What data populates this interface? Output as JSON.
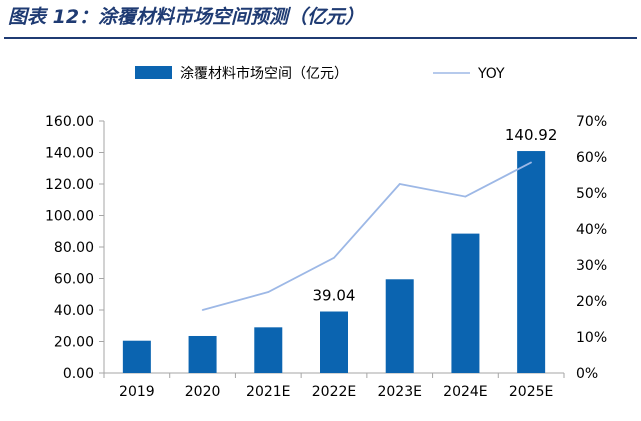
{
  "title": "图表 12：涂覆材料市场空间预测（亿元）",
  "chart_data": {
    "type": "bar",
    "categories": [
      "2019",
      "2020",
      "2021E",
      "2022E",
      "2023E",
      "2024E",
      "2025E"
    ],
    "series": [
      {
        "name": "涂覆材料市场空间（亿元）",
        "type": "bar",
        "axis": "left",
        "values": [
          20.5,
          23.5,
          29.0,
          39.04,
          59.5,
          88.5,
          140.92
        ]
      },
      {
        "name": "YOY",
        "type": "line",
        "axis": "right",
        "values": [
          null,
          0.175,
          0.225,
          0.32,
          0.525,
          0.49,
          0.585
        ]
      }
    ],
    "data_labels": [
      {
        "category": "2022E",
        "text": "39.04"
      },
      {
        "category": "2025E",
        "text": "140.92"
      }
    ],
    "ylim": [
      0,
      160
    ],
    "yticks": [
      "0.00",
      "20.00",
      "40.00",
      "60.00",
      "80.00",
      "100.00",
      "120.00",
      "140.00",
      "160.00"
    ],
    "y2lim": [
      0,
      0.7
    ],
    "y2ticks": [
      "0%",
      "10%",
      "20%",
      "30%",
      "40%",
      "50%",
      "60%",
      "70%"
    ],
    "legend_position": "top",
    "grid": false,
    "colors": {
      "bar": "#0b64b0",
      "line": "#9db8e6",
      "title": "#1f3b73",
      "axis": "#a6a6a6",
      "text": "#000000"
    }
  }
}
